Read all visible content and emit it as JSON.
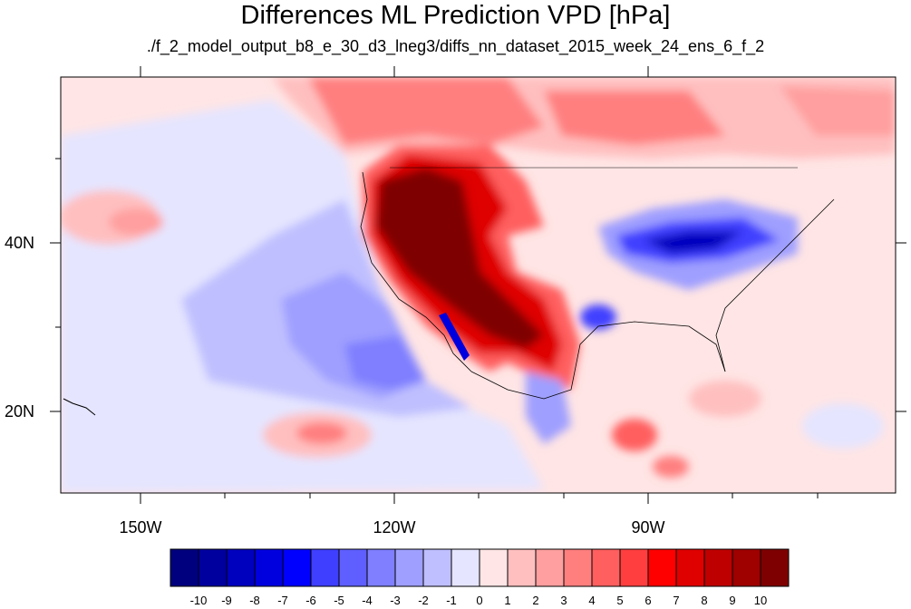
{
  "title": "Differences ML Prediction VPD [hPa]",
  "subtitle": "./f_2_model_output_b8_e_30_d3_lneg3/diffs_nn_dataset_2015_week_24_ens_6_f_2",
  "lat_labels": [
    "40N",
    "20N"
  ],
  "lon_labels": [
    "150W",
    "120W",
    "90W"
  ],
  "colorbar": {
    "labels": [
      "-10",
      "-9",
      "-8",
      "-7",
      "-6",
      "-5",
      "-4",
      "-3",
      "-2",
      "-1",
      "0",
      "1",
      "2",
      "3",
      "4",
      "5",
      "6",
      "7",
      "8",
      "9",
      "10"
    ],
    "colors": [
      "#00007f",
      "#00009f",
      "#0000bf",
      "#0000df",
      "#0000ff",
      "#3f3fff",
      "#5f5fff",
      "#7f7fff",
      "#9f9fff",
      "#bfbfff",
      "#e5e5ff",
      "#ffe5e5",
      "#ffbfbf",
      "#ff9f9f",
      "#ff7f7f",
      "#ff5f5f",
      "#ff3f3f",
      "#ff0000",
      "#df0000",
      "#bf0000",
      "#9f0000",
      "#7f0000"
    ]
  },
  "map_extent": {
    "lon_min": -160,
    "lon_max": -62,
    "lat_min": 10,
    "lat_max": 59
  }
}
